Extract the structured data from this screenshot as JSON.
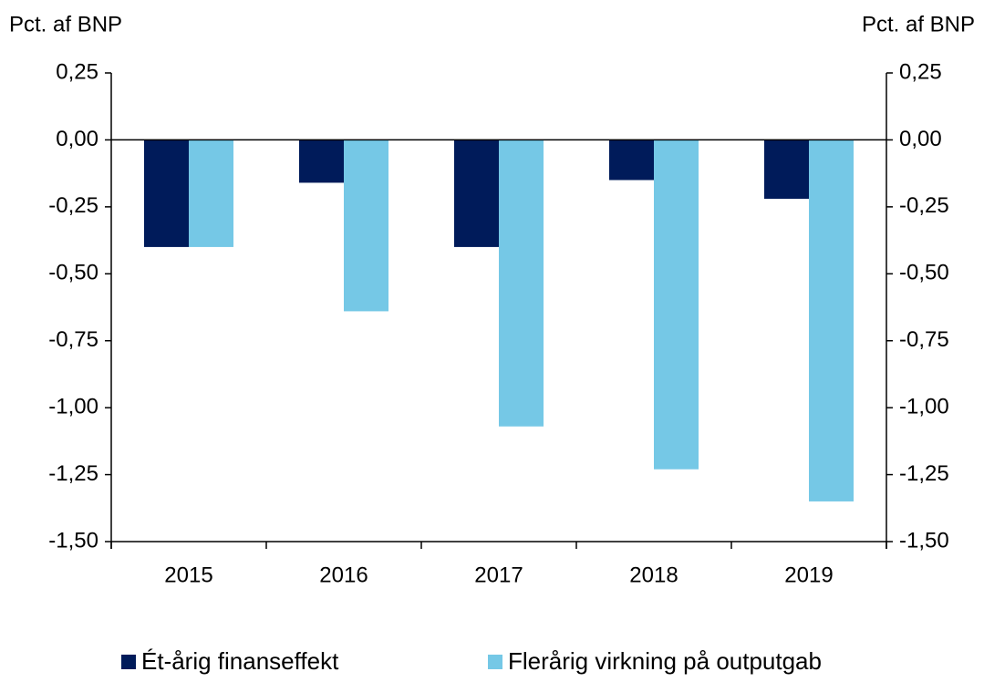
{
  "chart_data": {
    "type": "bar",
    "y_label": "Pct. af BNP",
    "y2_label": "Pct. af BNP",
    "categories": [
      "2015",
      "2016",
      "2017",
      "2018",
      "2019"
    ],
    "series": [
      {
        "name": "Ét-årig finanseffekt",
        "color": "#001b5a",
        "values": [
          -0.4,
          -0.16,
          -0.4,
          -0.15,
          -0.22
        ]
      },
      {
        "name": "Flerårig virkning på outputgab",
        "color": "#75c8e6",
        "values": [
          -0.4,
          -0.64,
          -1.07,
          -1.23,
          -1.35
        ]
      }
    ],
    "ylim": [
      -1.5,
      0.25
    ],
    "yticks": [
      {
        "value": 0.25,
        "label": "0,25"
      },
      {
        "value": 0,
        "label": "0,00"
      },
      {
        "value": -0.25,
        "label": "-0,25"
      },
      {
        "value": -0.5,
        "label": "-0,50"
      },
      {
        "value": -0.75,
        "label": "-0,75"
      },
      {
        "value": -1,
        "label": "-1,00"
      },
      {
        "value": -1.25,
        "label": "-1,25"
      },
      {
        "value": -1.5,
        "label": "-1,50"
      }
    ],
    "y2lim": [
      -1.5,
      0.25
    ],
    "y2ticks": [
      {
        "value": 0.25,
        "label": "0,25"
      },
      {
        "value": 0,
        "label": "0,00"
      },
      {
        "value": -0.25,
        "label": "-0,25"
      },
      {
        "value": -0.5,
        "label": "-0,50"
      },
      {
        "value": -0.75,
        "label": "-0,75"
      },
      {
        "value": -1,
        "label": "-1,00"
      },
      {
        "value": -1.25,
        "label": "-1,25"
      },
      {
        "value": -1.5,
        "label": "-1,50"
      }
    ],
    "grid": false,
    "legend": "bottom"
  }
}
